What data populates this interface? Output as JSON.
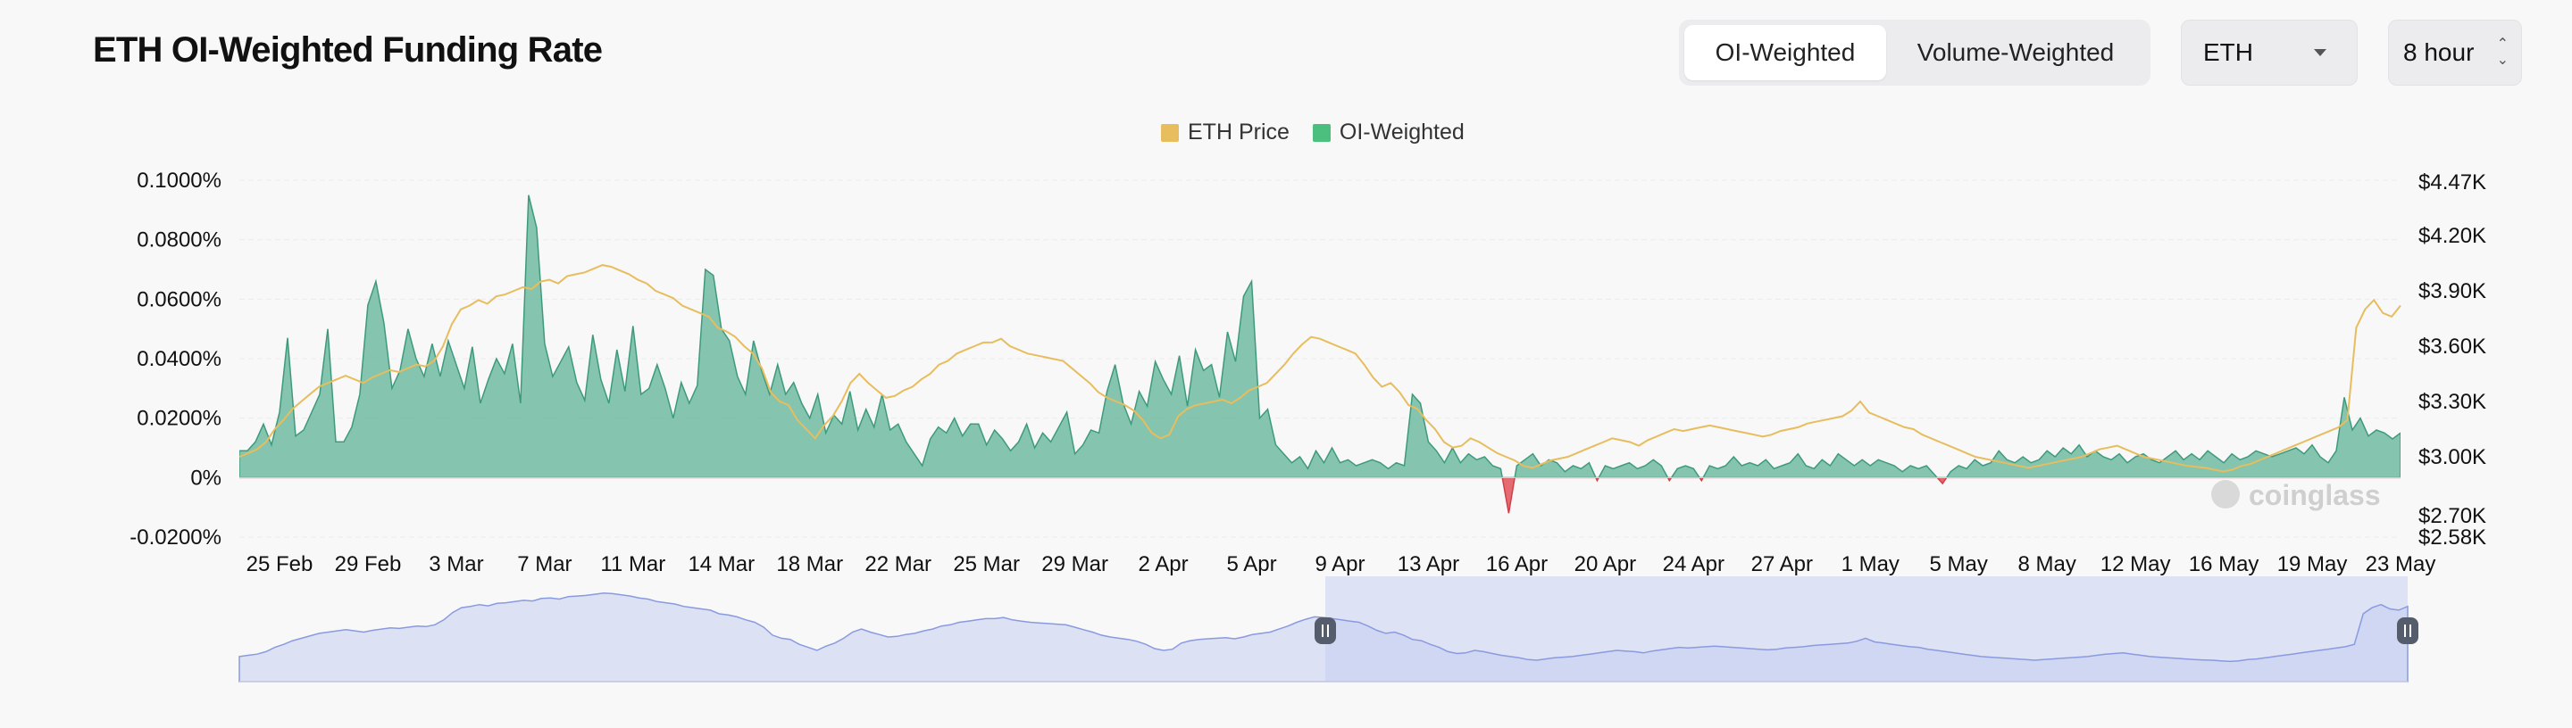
{
  "title": "ETH OI-Weighted Funding Rate",
  "toggle": {
    "active": "OI-Weighted",
    "inactive": "Volume-Weighted"
  },
  "symbol_select": {
    "value": "ETH"
  },
  "interval_select": {
    "value": "8 hour"
  },
  "watermark": "coinglass",
  "colors": {
    "price": "#e7bd5d",
    "positive": "#78bea6",
    "negative": "#e35a62",
    "navigator": "#c9d0f2",
    "legend_oi": "#4cbf7e"
  },
  "chart_data": {
    "type": "area",
    "legend": [
      {
        "name": "ETH Price",
        "color": "#e7bd5d"
      },
      {
        "name": "OI-Weighted",
        "color": "#4cbf7e"
      }
    ],
    "x_ticks": [
      "25 Feb",
      "29 Feb",
      "3 Mar",
      "7 Mar",
      "11 Mar",
      "14 Mar",
      "18 Mar",
      "22 Mar",
      "25 Mar",
      "29 Mar",
      "2 Apr",
      "5 Apr",
      "9 Apr",
      "13 Apr",
      "16 Apr",
      "20 Apr",
      "24 Apr",
      "27 Apr",
      "1 May",
      "5 May",
      "8 May",
      "12 May",
      "16 May",
      "19 May",
      "23 May"
    ],
    "y_left": {
      "ticks": [
        "0.1000%",
        "0.0800%",
        "0.0600%",
        "0.0400%",
        "0.0200%",
        "0%",
        "-0.0200%"
      ],
      "range": [
        -0.02,
        0.1
      ]
    },
    "y_right": {
      "ticks": [
        "$4.47K",
        "$4.20K",
        "$3.90K",
        "$3.60K",
        "$3.30K",
        "$3.00K",
        "$2.70K",
        "$2.58K"
      ]
    },
    "series": [
      {
        "name": "OI-Weighted",
        "unit": "%",
        "values": [
          0.009,
          0.009,
          0.012,
          0.018,
          0.011,
          0.022,
          0.047,
          0.014,
          0.016,
          0.022,
          0.028,
          0.05,
          0.012,
          0.012,
          0.017,
          0.028,
          0.058,
          0.066,
          0.052,
          0.03,
          0.036,
          0.05,
          0.04,
          0.034,
          0.045,
          0.034,
          0.046,
          0.038,
          0.03,
          0.044,
          0.025,
          0.033,
          0.04,
          0.035,
          0.045,
          0.025,
          0.095,
          0.084,
          0.045,
          0.034,
          0.039,
          0.044,
          0.032,
          0.026,
          0.048,
          0.033,
          0.025,
          0.043,
          0.029,
          0.051,
          0.028,
          0.03,
          0.038,
          0.03,
          0.02,
          0.032,
          0.025,
          0.031,
          0.07,
          0.068,
          0.05,
          0.046,
          0.034,
          0.028,
          0.046,
          0.036,
          0.028,
          0.038,
          0.028,
          0.032,
          0.025,
          0.02,
          0.028,
          0.015,
          0.021,
          0.018,
          0.029,
          0.016,
          0.023,
          0.017,
          0.028,
          0.016,
          0.018,
          0.012,
          0.008,
          0.004,
          0.013,
          0.017,
          0.015,
          0.02,
          0.014,
          0.018,
          0.018,
          0.011,
          0.016,
          0.013,
          0.009,
          0.012,
          0.018,
          0.01,
          0.015,
          0.012,
          0.017,
          0.022,
          0.008,
          0.011,
          0.016,
          0.015,
          0.029,
          0.038,
          0.025,
          0.018,
          0.029,
          0.024,
          0.039,
          0.033,
          0.028,
          0.041,
          0.024,
          0.043,
          0.036,
          0.038,
          0.027,
          0.049,
          0.039,
          0.061,
          0.066,
          0.02,
          0.023,
          0.011,
          0.008,
          0.005,
          0.007,
          0.003,
          0.009,
          0.005,
          0.01,
          0.005,
          0.006,
          0.004,
          0.005,
          0.006,
          0.005,
          0.003,
          0.005,
          0.004,
          0.028,
          0.025,
          0.012,
          0.009,
          0.005,
          0.01,
          0.005,
          0.008,
          0.006,
          0.007,
          0.004,
          0.003,
          -0.012,
          0.004,
          0.006,
          0.008,
          0.004,
          0.006,
          0.005,
          0.002,
          0.004,
          0.003,
          0.005,
          -0.001,
          0.004,
          0.003,
          0.004,
          0.005,
          0.003,
          0.004,
          0.006,
          0.004,
          -0.001,
          0.003,
          0.004,
          0.003,
          -0.001,
          0.004,
          0.003,
          0.004,
          0.007,
          0.004,
          0.005,
          0.004,
          0.006,
          0.003,
          0.004,
          0.005,
          0.008,
          0.004,
          0.003,
          0.006,
          0.004,
          0.008,
          0.006,
          0.004,
          0.006,
          0.004,
          0.006,
          0.005,
          0.004,
          0.002,
          0.004,
          0.003,
          0.004,
          0.001,
          -0.002,
          0.002,
          0.004,
          0.003,
          0.006,
          0.004,
          0.005,
          0.009,
          0.006,
          0.005,
          0.007,
          0.005,
          0.006,
          0.009,
          0.007,
          0.01,
          0.008,
          0.011,
          0.007,
          0.009,
          0.007,
          0.006,
          0.008,
          0.005,
          0.007,
          0.008,
          0.006,
          0.005,
          0.007,
          0.009,
          0.006,
          0.008,
          0.006,
          0.009,
          0.007,
          0.005,
          0.008,
          0.006,
          0.007,
          0.009,
          0.008,
          0.007,
          0.008,
          0.009,
          0.01,
          0.008,
          0.011,
          0.007,
          0.005,
          0.009,
          0.027,
          0.016,
          0.02,
          0.014,
          0.016,
          0.015,
          0.013,
          0.015
        ]
      },
      {
        "name": "ETH Price",
        "unit": "$",
        "values": [
          3000,
          3020,
          3040,
          3080,
          3150,
          3200,
          3260,
          3300,
          3340,
          3380,
          3400,
          3420,
          3440,
          3420,
          3400,
          3430,
          3450,
          3470,
          3460,
          3480,
          3500,
          3490,
          3520,
          3600,
          3720,
          3800,
          3820,
          3850,
          3830,
          3870,
          3880,
          3900,
          3920,
          3910,
          3950,
          3960,
          3940,
          3980,
          3990,
          4000,
          4020,
          4040,
          4030,
          4010,
          3990,
          3960,
          3940,
          3900,
          3880,
          3860,
          3820,
          3800,
          3780,
          3760,
          3700,
          3680,
          3650,
          3600,
          3560,
          3480,
          3350,
          3300,
          3280,
          3200,
          3150,
          3100,
          3170,
          3220,
          3300,
          3400,
          3450,
          3400,
          3360,
          3320,
          3330,
          3360,
          3380,
          3420,
          3450,
          3500,
          3520,
          3560,
          3580,
          3600,
          3620,
          3620,
          3640,
          3600,
          3580,
          3560,
          3550,
          3540,
          3530,
          3520,
          3480,
          3440,
          3400,
          3350,
          3320,
          3300,
          3280,
          3250,
          3200,
          3130,
          3100,
          3120,
          3220,
          3260,
          3280,
          3290,
          3300,
          3310,
          3290,
          3320,
          3360,
          3380,
          3400,
          3450,
          3500,
          3560,
          3610,
          3650,
          3640,
          3620,
          3600,
          3580,
          3560,
          3500,
          3430,
          3380,
          3400,
          3350,
          3280,
          3260,
          3200,
          3150,
          3080,
          3050,
          3060,
          3100,
          3080,
          3050,
          3020,
          3000,
          2980,
          2950,
          2940,
          2960,
          2980,
          2990,
          3000,
          3020,
          3040,
          3060,
          3080,
          3100,
          3090,
          3080,
          3060,
          3090,
          3110,
          3130,
          3150,
          3140,
          3150,
          3160,
          3170,
          3160,
          3150,
          3140,
          3130,
          3120,
          3110,
          3120,
          3140,
          3150,
          3160,
          3180,
          3190,
          3200,
          3210,
          3220,
          3250,
          3300,
          3240,
          3220,
          3200,
          3180,
          3160,
          3150,
          3120,
          3100,
          3080,
          3060,
          3040,
          3020,
          3000,
          2990,
          2980,
          2970,
          2960,
          2950,
          2940,
          2950,
          2960,
          2970,
          2980,
          2990,
          3000,
          3020,
          3040,
          3050,
          3060,
          3040,
          3020,
          3000,
          2990,
          2980,
          2970,
          2960,
          2950,
          2945,
          2940,
          2930,
          2920,
          2930,
          2950,
          2960,
          2980,
          3000,
          3020,
          3040,
          3060,
          3080,
          3100,
          3120,
          3140,
          3160,
          3200,
          3700,
          3800,
          3850,
          3780,
          3760,
          3820
        ]
      }
    ],
    "navigator": {
      "selected_range": [
        "9 Apr",
        "23 May"
      ]
    }
  }
}
